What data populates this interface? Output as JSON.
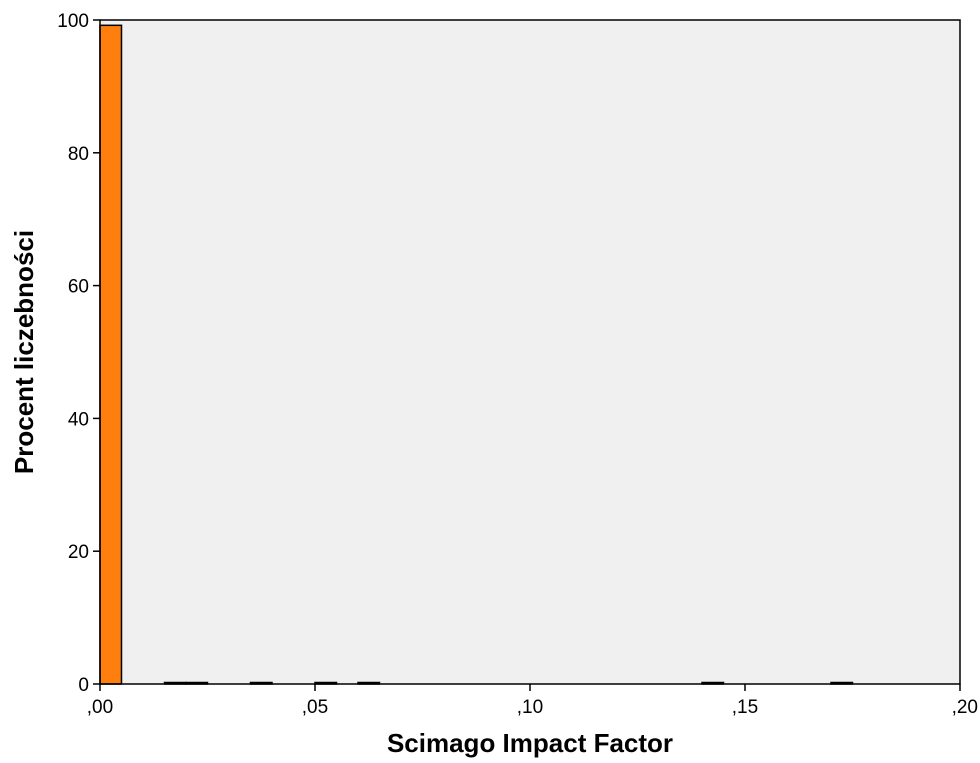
{
  "chart_data": {
    "type": "bar",
    "xlabel": "Scimago Impact Factor",
    "ylabel": "Procent liczebności",
    "xlim": [
      0,
      0.2
    ],
    "ylim": [
      0,
      100
    ],
    "x_ticks": [
      0,
      0.05,
      0.1,
      0.15,
      0.2
    ],
    "x_tick_labels": [
      ",00",
      ",05",
      ",10",
      ",15",
      ",20"
    ],
    "y_ticks": [
      0,
      20,
      40,
      60,
      80,
      100
    ],
    "y_tick_labels": [
      "0",
      "20",
      "40",
      "60",
      "80",
      "100"
    ],
    "bin_width": 0.005,
    "bins": [
      {
        "x0": 0.0,
        "x1": 0.005,
        "value": 99.2
      },
      {
        "x0": 0.015,
        "x1": 0.02,
        "value": 0.1
      },
      {
        "x0": 0.02,
        "x1": 0.025,
        "value": 0.1
      },
      {
        "x0": 0.035,
        "x1": 0.04,
        "value": 0.1
      },
      {
        "x0": 0.05,
        "x1": 0.055,
        "value": 0.1
      },
      {
        "x0": 0.06,
        "x1": 0.065,
        "value": 0.1
      },
      {
        "x0": 0.14,
        "x1": 0.145,
        "value": 0.1
      },
      {
        "x0": 0.17,
        "x1": 0.175,
        "value": 0.1
      }
    ],
    "grid": false,
    "colors": {
      "bar": "#ff7f0e",
      "bar_edge": "#000000",
      "plot_background": "#f0f0f0"
    }
  }
}
